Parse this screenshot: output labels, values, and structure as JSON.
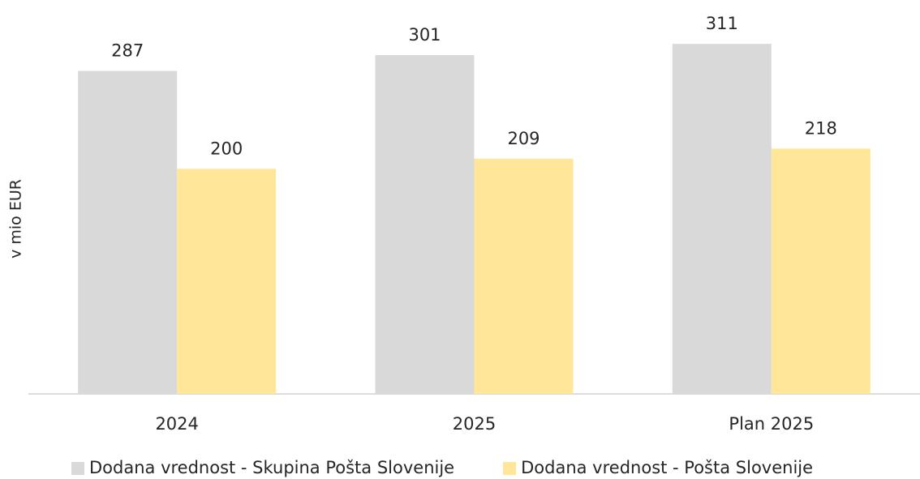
{
  "chart_data": {
    "type": "bar",
    "y_label": "v mio EUR",
    "categories": [
      "2024",
      "2025",
      "Plan 2025"
    ],
    "series": [
      {
        "name": "Dodana vrednost - Skupina Pošta Slovenije",
        "color": "#d9d9d9",
        "values": [
          287,
          301,
          311
        ]
      },
      {
        "name": "Dodana vrednost - Pošta Slovenije",
        "color": "#ffe699",
        "values": [
          200,
          209,
          218
        ]
      }
    ],
    "ylim": [
      0,
      350
    ],
    "legend": "bottom"
  }
}
